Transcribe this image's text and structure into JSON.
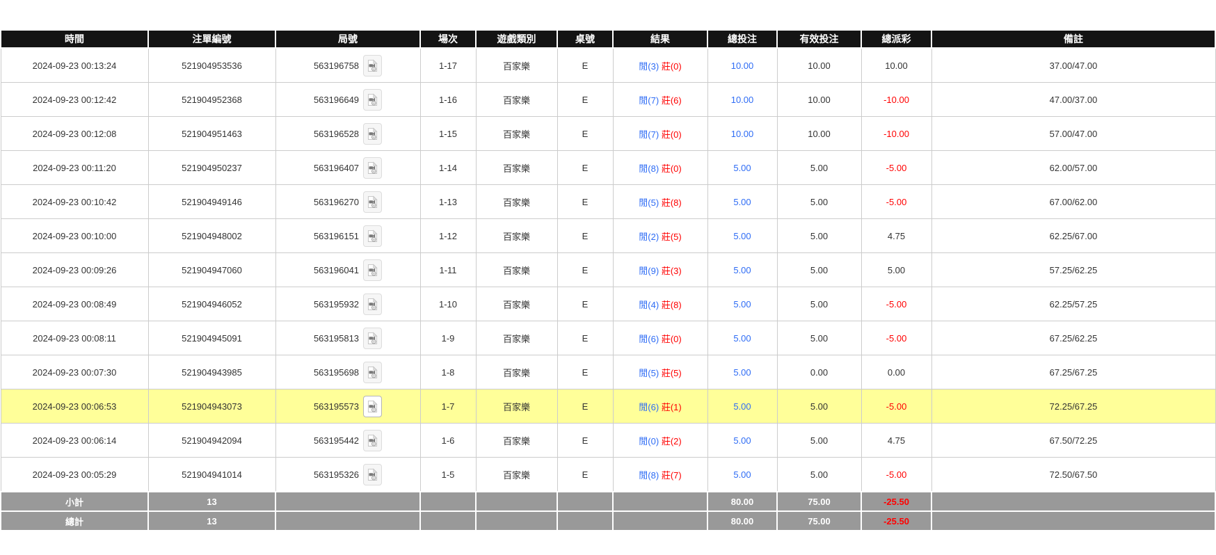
{
  "table": {
    "columns": [
      {
        "key": "time",
        "label": "時間"
      },
      {
        "key": "bet_id",
        "label": "注單編號"
      },
      {
        "key": "round",
        "label": "局號"
      },
      {
        "key": "session",
        "label": "場次"
      },
      {
        "key": "game_type",
        "label": "遊戲類別"
      },
      {
        "key": "table_no",
        "label": "桌號"
      },
      {
        "key": "result",
        "label": "結果"
      },
      {
        "key": "total_bet",
        "label": "總投注"
      },
      {
        "key": "valid_bet",
        "label": "有效投注"
      },
      {
        "key": "total_payout",
        "label": "總派彩"
      },
      {
        "key": "remark",
        "label": "備註"
      }
    ],
    "rows": [
      {
        "time": "2024-09-23 00:13:24",
        "bet_id": "521904953536",
        "round": "563196758",
        "session": "1-17",
        "game_type": "百家樂",
        "table_no": "E",
        "result_player": "閒(3)",
        "result_banker": "莊(0)",
        "total_bet": "10.00",
        "valid_bet": "10.00",
        "total_payout": "10.00",
        "remark": "37.00/47.00",
        "highlight": false
      },
      {
        "time": "2024-09-23 00:12:42",
        "bet_id": "521904952368",
        "round": "563196649",
        "session": "1-16",
        "game_type": "百家樂",
        "table_no": "E",
        "result_player": "閒(7)",
        "result_banker": "莊(6)",
        "total_bet": "10.00",
        "valid_bet": "10.00",
        "total_payout": "-10.00",
        "remark": "47.00/37.00",
        "highlight": false
      },
      {
        "time": "2024-09-23 00:12:08",
        "bet_id": "521904951463",
        "round": "563196528",
        "session": "1-15",
        "game_type": "百家樂",
        "table_no": "E",
        "result_player": "閒(7)",
        "result_banker": "莊(0)",
        "total_bet": "10.00",
        "valid_bet": "10.00",
        "total_payout": "-10.00",
        "remark": "57.00/47.00",
        "highlight": false
      },
      {
        "time": "2024-09-23 00:11:20",
        "bet_id": "521904950237",
        "round": "563196407",
        "session": "1-14",
        "game_type": "百家樂",
        "table_no": "E",
        "result_player": "閒(8)",
        "result_banker": "莊(0)",
        "total_bet": "5.00",
        "valid_bet": "5.00",
        "total_payout": "-5.00",
        "remark": "62.00/57.00",
        "highlight": false
      },
      {
        "time": "2024-09-23 00:10:42",
        "bet_id": "521904949146",
        "round": "563196270",
        "session": "1-13",
        "game_type": "百家樂",
        "table_no": "E",
        "result_player": "閒(5)",
        "result_banker": "莊(8)",
        "total_bet": "5.00",
        "valid_bet": "5.00",
        "total_payout": "-5.00",
        "remark": "67.00/62.00",
        "highlight": false
      },
      {
        "time": "2024-09-23 00:10:00",
        "bet_id": "521904948002",
        "round": "563196151",
        "session": "1-12",
        "game_type": "百家樂",
        "table_no": "E",
        "result_player": "閒(2)",
        "result_banker": "莊(5)",
        "total_bet": "5.00",
        "valid_bet": "5.00",
        "total_payout": "4.75",
        "remark": "62.25/67.00",
        "highlight": false
      },
      {
        "time": "2024-09-23 00:09:26",
        "bet_id": "521904947060",
        "round": "563196041",
        "session": "1-11",
        "game_type": "百家樂",
        "table_no": "E",
        "result_player": "閒(9)",
        "result_banker": "莊(3)",
        "total_bet": "5.00",
        "valid_bet": "5.00",
        "total_payout": "5.00",
        "remark": "57.25/62.25",
        "highlight": false
      },
      {
        "time": "2024-09-23 00:08:49",
        "bet_id": "521904946052",
        "round": "563195932",
        "session": "1-10",
        "game_type": "百家樂",
        "table_no": "E",
        "result_player": "閒(4)",
        "result_banker": "莊(8)",
        "total_bet": "5.00",
        "valid_bet": "5.00",
        "total_payout": "-5.00",
        "remark": "62.25/57.25",
        "highlight": false
      },
      {
        "time": "2024-09-23 00:08:11",
        "bet_id": "521904945091",
        "round": "563195813",
        "session": "1-9",
        "game_type": "百家樂",
        "table_no": "E",
        "result_player": "閒(6)",
        "result_banker": "莊(0)",
        "total_bet": "5.00",
        "valid_bet": "5.00",
        "total_payout": "-5.00",
        "remark": "67.25/62.25",
        "highlight": false
      },
      {
        "time": "2024-09-23 00:07:30",
        "bet_id": "521904943985",
        "round": "563195698",
        "session": "1-8",
        "game_type": "百家樂",
        "table_no": "E",
        "result_player": "閒(5)",
        "result_banker": "莊(5)",
        "total_bet": "5.00",
        "valid_bet": "0.00",
        "total_payout": "0.00",
        "remark": "67.25/67.25",
        "highlight": false
      },
      {
        "time": "2024-09-23 00:06:53",
        "bet_id": "521904943073",
        "round": "563195573",
        "session": "1-7",
        "game_type": "百家樂",
        "table_no": "E",
        "result_player": "閒(6)",
        "result_banker": "莊(1)",
        "total_bet": "5.00",
        "valid_bet": "5.00",
        "total_payout": "-5.00",
        "remark": "72.25/67.25",
        "highlight": true
      },
      {
        "time": "2024-09-23 00:06:14",
        "bet_id": "521904942094",
        "round": "563195442",
        "session": "1-6",
        "game_type": "百家樂",
        "table_no": "E",
        "result_player": "閒(0)",
        "result_banker": "莊(2)",
        "total_bet": "5.00",
        "valid_bet": "5.00",
        "total_payout": "4.75",
        "remark": "67.50/72.25",
        "highlight": false
      },
      {
        "time": "2024-09-23 00:05:29",
        "bet_id": "521904941014",
        "round": "563195326",
        "session": "1-5",
        "game_type": "百家樂",
        "table_no": "E",
        "result_player": "閒(8)",
        "result_banker": "莊(7)",
        "total_bet": "5.00",
        "valid_bet": "5.00",
        "total_payout": "-5.00",
        "remark": "72.50/67.50",
        "highlight": false
      }
    ],
    "footer": [
      {
        "label": "小計",
        "count": "13",
        "total_bet": "80.00",
        "valid_bet": "75.00",
        "total_payout": "-25.50"
      },
      {
        "label": "總計",
        "count": "13",
        "total_bet": "80.00",
        "valid_bet": "75.00",
        "total_payout": "-25.50"
      }
    ]
  },
  "icons": {
    "replay": "video-replay-icon"
  },
  "colors": {
    "accent_blue": "#2e6cf5",
    "negative_red": "#ff0000",
    "highlight_yellow": "#ffff99",
    "header_bg": "#141414",
    "footer_bg": "#999999"
  }
}
